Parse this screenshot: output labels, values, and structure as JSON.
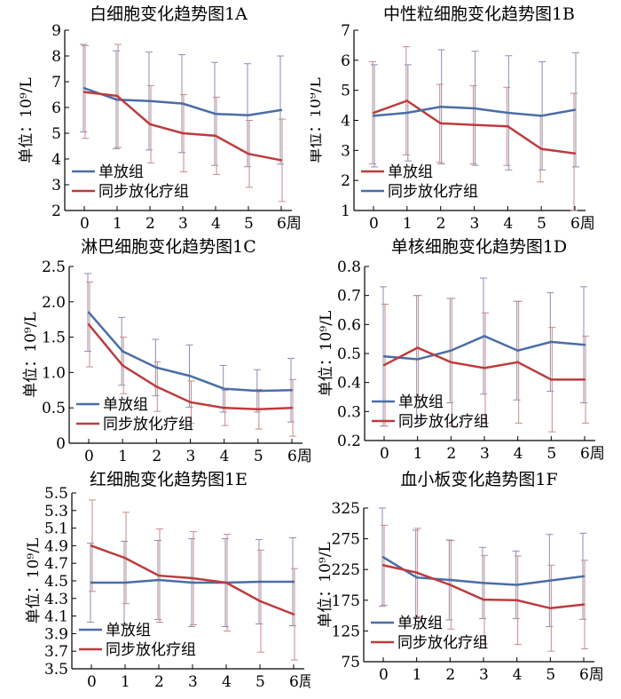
{
  "colors": {
    "single": "#4a6da7",
    "combined": "#be3b3d",
    "error": "#c08080",
    "axis": "#000000"
  },
  "chart_data": [
    {
      "id": "1A",
      "type": "line",
      "title": "白细胞变化趋势图1A",
      "ylabel": "单位：10⁹/L",
      "xlabel": "周",
      "x": [
        0,
        1,
        2,
        3,
        4,
        5,
        6
      ],
      "xticks": [
        "0",
        "1",
        "2",
        "3",
        "4",
        "5",
        "6周"
      ],
      "ylim": [
        2,
        9
      ],
      "yticks": [
        "2",
        "3",
        "4",
        "5",
        "6",
        "7",
        "8",
        "9"
      ],
      "legend": [
        "单放组",
        "同步放化疗组"
      ],
      "legend_position": "bottom-left",
      "series": [
        {
          "name": "单放组",
          "color": "#4a6da7",
          "values": [
            6.75,
            6.3,
            6.25,
            6.15,
            5.75,
            5.7,
            5.9
          ],
          "errors": [
            1.7,
            1.9,
            1.9,
            1.9,
            2.0,
            2.0,
            2.1
          ]
        },
        {
          "name": "同步放化疗组",
          "color": "#be3b3d",
          "values": [
            6.6,
            6.45,
            5.35,
            5.0,
            4.9,
            4.2,
            3.95
          ],
          "errors": [
            1.8,
            2.0,
            1.5,
            1.5,
            1.5,
            1.3,
            1.6
          ]
        }
      ]
    },
    {
      "id": "1B",
      "type": "line",
      "title": "中性粒细胞变化趋势图1B",
      "ylabel": "单位：10⁹/L",
      "xlabel": "周",
      "x": [
        0,
        1,
        2,
        3,
        4,
        5,
        6
      ],
      "xticks": [
        "0",
        "1",
        "2",
        "3",
        "4",
        "5",
        "6周"
      ],
      "ylim": [
        1,
        7
      ],
      "yticks": [
        "1",
        "2",
        "3",
        "4",
        "5",
        "6",
        "7"
      ],
      "legend": [
        "单放组",
        "同步放化疗组"
      ],
      "legend_position": "bottom-left",
      "series": [
        {
          "name": "单放组",
          "color": "#be3b3d",
          "values": [
            4.25,
            4.65,
            3.9,
            3.85,
            3.8,
            3.05,
            2.9
          ],
          "errors": [
            1.7,
            1.8,
            1.3,
            1.3,
            1.3,
            1.1,
            2.0
          ]
        },
        {
          "name": "同步放化疗组",
          "color": "#4a6da7",
          "values": [
            4.15,
            4.25,
            4.45,
            4.4,
            4.25,
            4.15,
            4.35
          ],
          "errors": [
            1.7,
            1.6,
            1.9,
            1.9,
            1.9,
            1.8,
            1.9
          ]
        }
      ]
    },
    {
      "id": "1C",
      "type": "line",
      "title": "淋巴细胞变化趋势图1C",
      "ylabel": "单位：10⁹/L",
      "xlabel": "周",
      "x": [
        0,
        1,
        2,
        3,
        4,
        5,
        6
      ],
      "xticks": [
        "0",
        "1",
        "2",
        "3",
        "4",
        "5",
        "6周"
      ],
      "ylim": [
        0,
        2.5
      ],
      "yticks": [
        "0",
        "0.5",
        "1.0",
        "1.5",
        "2.0",
        "2.5"
      ],
      "legend": [
        "单放组",
        "同步放化疗组"
      ],
      "legend_position": "bottom-left",
      "series": [
        {
          "name": "单放组",
          "color": "#4a6da7",
          "values": [
            1.85,
            1.3,
            1.07,
            0.95,
            0.77,
            0.74,
            0.75
          ],
          "errors": [
            0.55,
            0.48,
            0.4,
            0.44,
            0.33,
            0.3,
            0.45
          ]
        },
        {
          "name": "同步放化疗组",
          "color": "#be3b3d",
          "values": [
            1.68,
            1.1,
            0.8,
            0.58,
            0.5,
            0.48,
            0.5
          ],
          "errors": [
            0.6,
            0.4,
            0.35,
            0.3,
            0.25,
            0.28,
            0.4
          ]
        }
      ]
    },
    {
      "id": "1D",
      "type": "line",
      "title": "单核细胞变化趋势图1D",
      "ylabel": "单位：10⁹/L",
      "xlabel": "周",
      "x": [
        0,
        1,
        2,
        3,
        4,
        5,
        6
      ],
      "xticks": [
        "0",
        "1",
        "2",
        "3",
        "4",
        "5",
        "6周"
      ],
      "ylim": [
        0.2,
        0.8
      ],
      "yticks": [
        "0.2",
        "0.3",
        "0.4",
        "0.5",
        "0.6",
        "0.7",
        "0.8"
      ],
      "legend": [
        "单放组",
        "同步放化疗组"
      ],
      "legend_position": "bottom-left",
      "series": [
        {
          "name": "单放组",
          "color": "#4a6da7",
          "values": [
            0.49,
            0.48,
            0.51,
            0.56,
            0.51,
            0.54,
            0.53
          ],
          "errors": [
            0.24,
            0.22,
            0.18,
            0.2,
            0.17,
            0.17,
            0.2
          ]
        },
        {
          "name": "同步放化疗组",
          "color": "#be3b3d",
          "values": [
            0.46,
            0.52,
            0.47,
            0.45,
            0.47,
            0.41,
            0.41
          ],
          "errors": [
            0.21,
            0.18,
            0.22,
            0.19,
            0.21,
            0.18,
            0.15
          ]
        }
      ]
    },
    {
      "id": "1E",
      "type": "line",
      "title": "红细胞变化趋势图1E",
      "ylabel": "单位：10⁹/L",
      "xlabel": "周",
      "x": [
        0,
        1,
        2,
        3,
        4,
        5,
        6
      ],
      "xticks": [
        "0",
        "1",
        "2",
        "3",
        "4",
        "5",
        "6周"
      ],
      "ylim": [
        3.5,
        5.5
      ],
      "yticks": [
        "3.5",
        "3.7",
        "3.9",
        "4.1",
        "4.3",
        "4.5",
        "4.7",
        "4.9",
        "5.1",
        "5.3",
        "5.5"
      ],
      "legend": [
        "单放组",
        "同步放化疗组"
      ],
      "legend_position": "bottom-left",
      "series": [
        {
          "name": "单放组",
          "color": "#4a6da7",
          "values": [
            4.48,
            4.48,
            4.51,
            4.48,
            4.48,
            4.49,
            4.49
          ],
          "errors": [
            0.45,
            0.47,
            0.45,
            0.5,
            0.5,
            0.48,
            0.5
          ]
        },
        {
          "name": "同步放化疗组",
          "color": "#be3b3d",
          "values": [
            4.9,
            4.76,
            4.56,
            4.53,
            4.48,
            4.27,
            4.12
          ],
          "errors": [
            0.52,
            0.52,
            0.53,
            0.53,
            0.55,
            0.58,
            0.52
          ]
        }
      ]
    },
    {
      "id": "1F",
      "type": "line",
      "title": "血小板变化趋势图1F",
      "ylabel": "单位：10⁹/L",
      "xlabel": "周",
      "x": [
        0,
        1,
        2,
        3,
        4,
        5,
        6
      ],
      "xticks": [
        "0",
        "1",
        "2",
        "3",
        "4",
        "5",
        "6周"
      ],
      "ylim": [
        75,
        325
      ],
      "yticks": [
        "75",
        "125",
        "175",
        "225",
        "275",
        "325"
      ],
      "legend": [
        "单放组",
        "同步放化疗组"
      ],
      "legend_position": "bottom-left",
      "series": [
        {
          "name": "单放组",
          "color": "#4a6da7",
          "values": [
            245,
            212,
            208,
            203,
            200,
            207,
            214
          ],
          "errors": [
            80,
            77,
            65,
            58,
            55,
            75,
            70
          ]
        },
        {
          "name": "同步放化疗组",
          "color": "#be3b3d",
          "values": [
            232,
            220,
            200,
            176,
            175,
            162,
            168
          ],
          "errors": [
            65,
            72,
            72,
            72,
            72,
            70,
            72
          ]
        }
      ]
    }
  ]
}
